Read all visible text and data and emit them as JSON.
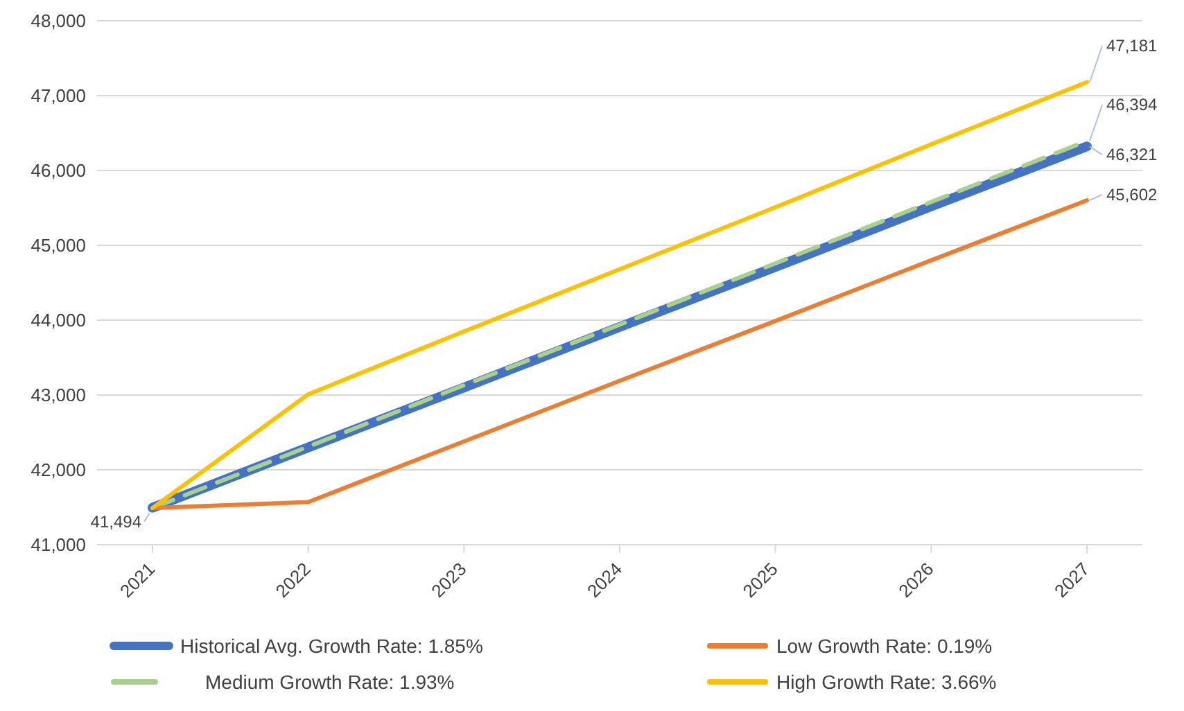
{
  "chart_data": {
    "type": "line",
    "categories": [
      "2021",
      "2022",
      "2023",
      "2024",
      "2025",
      "2026",
      "2027"
    ],
    "series": [
      {
        "name": "Historical Avg. Growth Rate: 1.85%",
        "color": "#4472c4",
        "values": [
          41494,
          42300,
          43100,
          43910,
          44710,
          45520,
          46321
        ],
        "value_labels": [
          "41,494",
          null,
          null,
          null,
          null,
          null,
          "46,321"
        ]
      },
      {
        "name": "Medium Growth Rate: 1.93%",
        "color": "#a9d18e",
        "line_style": "dashed",
        "values": [
          41490,
          42310,
          43130,
          43940,
          44760,
          45580,
          46394
        ],
        "value_labels": [
          null,
          null,
          null,
          null,
          null,
          null,
          "46,394"
        ]
      },
      {
        "name": "Low Growth Rate: 0.19%",
        "color": "#ed7d31",
        "values": [
          41490,
          41570,
          42380,
          43190,
          43990,
          44800,
          45602
        ],
        "value_labels": [
          null,
          null,
          null,
          null,
          null,
          null,
          "45,602"
        ]
      },
      {
        "name": "High Growth Rate: 3.66%",
        "color": "#ffc000",
        "values": [
          41490,
          43010,
          43850,
          44680,
          45510,
          46350,
          47181
        ],
        "value_labels": [
          null,
          null,
          null,
          null,
          null,
          null,
          "47,181"
        ]
      }
    ],
    "ylim": [
      41000,
      48000
    ],
    "yticks": [
      {
        "value": 41000,
        "label": "41,000"
      },
      {
        "value": 42000,
        "label": "42,000"
      },
      {
        "value": 43000,
        "label": "43,000"
      },
      {
        "value": 44000,
        "label": "44,000"
      },
      {
        "value": 45000,
        "label": "45,000"
      },
      {
        "value": 46000,
        "label": "46,000"
      },
      {
        "value": 47000,
        "label": "47,000"
      },
      {
        "value": 48000,
        "label": "48,000"
      }
    ],
    "grid": "y",
    "legend": "bottom",
    "marker": "none"
  }
}
